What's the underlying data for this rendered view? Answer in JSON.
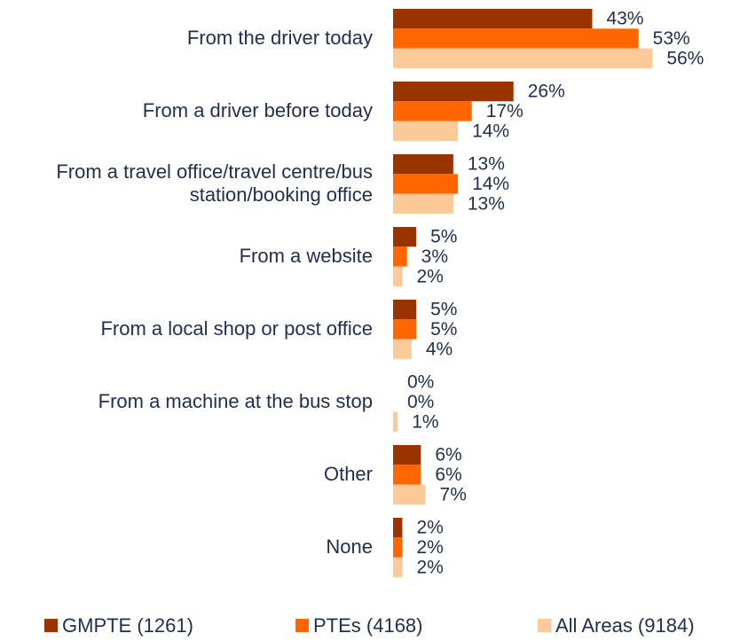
{
  "chart_data": {
    "type": "hbar",
    "categories": [
      "From the driver today",
      "From a driver before today",
      "From a travel office/travel centre/bus station/booking office",
      "From a website",
      "From a local shop or post office",
      "From a machine at the bus stop",
      "Other",
      "None"
    ],
    "series": [
      {
        "name": "GMPTE (1261)",
        "color": "#993300",
        "values": [
          43,
          26,
          13,
          5,
          5,
          0,
          6,
          2
        ],
        "value_labels": [
          "43%",
          "26%",
          "13%",
          "5%",
          "5%",
          "0%",
          "6%",
          "2%"
        ]
      },
      {
        "name": "PTEs (4168)",
        "color": "#ff6600",
        "values": [
          53,
          17,
          14,
          3,
          5,
          0,
          6,
          2
        ],
        "value_labels": [
          "53%",
          "17%",
          "14%",
          "3%",
          "5%",
          "0%",
          "6%",
          "2%"
        ]
      },
      {
        "name": "All Areas (9184)",
        "color": "#fcc998",
        "values": [
          56,
          14,
          13,
          2,
          4,
          1,
          7,
          2
        ],
        "value_labels": [
          "56%",
          "14%",
          "13%",
          "2%",
          "4%",
          "1%",
          "7%",
          "2%"
        ]
      }
    ],
    "legend": "bottom"
  }
}
